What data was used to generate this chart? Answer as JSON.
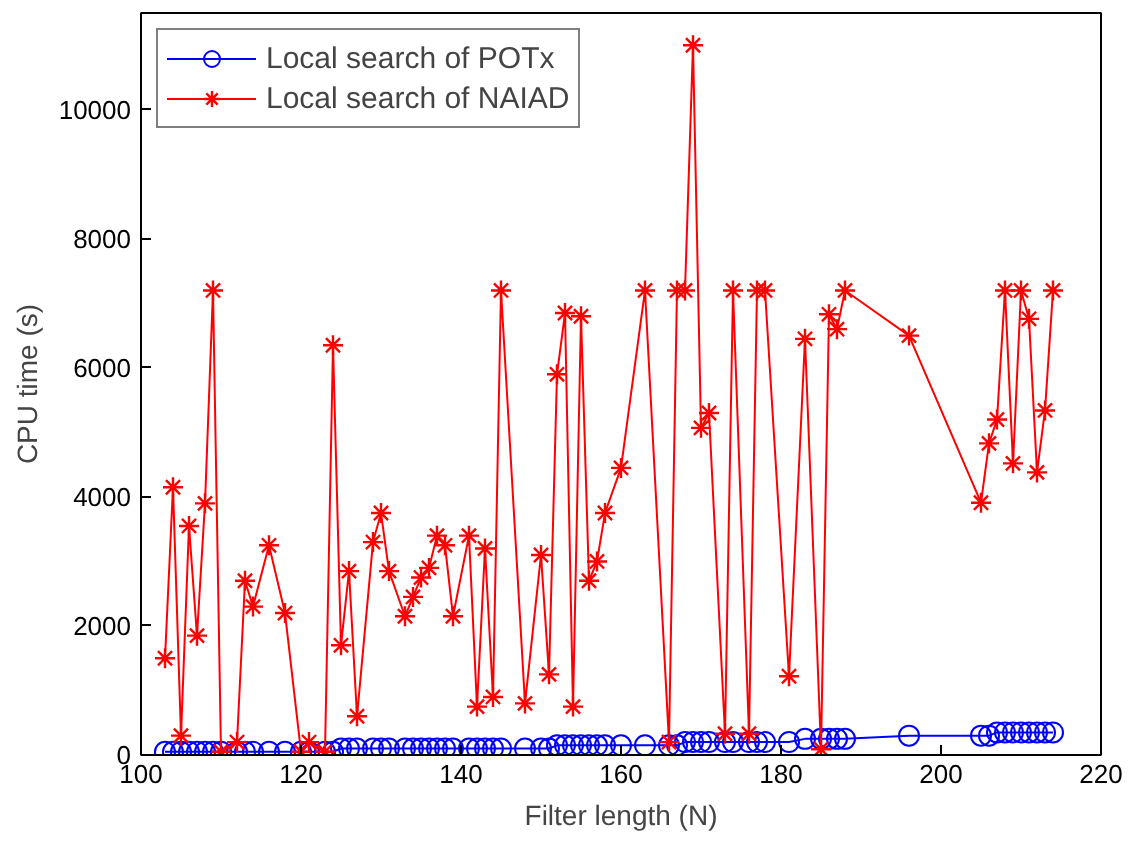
{
  "chart_data": {
    "type": "line",
    "xlabel": "Filter length (N)",
    "ylabel": "CPU time (s)",
    "x": [
      103,
      104,
      105,
      106,
      107,
      108,
      109,
      110,
      112,
      113,
      114,
      116,
      118,
      120,
      121,
      123,
      124,
      125,
      126,
      127,
      129,
      130,
      131,
      133,
      134,
      135,
      136,
      137,
      138,
      139,
      141,
      142,
      143,
      144,
      145,
      148,
      150,
      151,
      152,
      153,
      154,
      155,
      156,
      157,
      158,
      160,
      163,
      166,
      167,
      168,
      169,
      170,
      171,
      173,
      174,
      176,
      177,
      178,
      181,
      183,
      185,
      186,
      187,
      188,
      196,
      205,
      206,
      207,
      208,
      209,
      210,
      211,
      212,
      213,
      214
    ],
    "series": [
      {
        "name": "Local search of POTx",
        "color": "#0000ff",
        "marker": "circle",
        "values": [
          50,
          50,
          50,
          50,
          50,
          50,
          50,
          50,
          50,
          50,
          50,
          50,
          50,
          50,
          50,
          50,
          50,
          100,
          100,
          100,
          100,
          100,
          100,
          100,
          100,
          100,
          100,
          100,
          100,
          100,
          100,
          100,
          100,
          100,
          100,
          100,
          100,
          100,
          150,
          150,
          150,
          150,
          150,
          150,
          150,
          150,
          150,
          150,
          150,
          200,
          200,
          200,
          200,
          200,
          200,
          200,
          200,
          200,
          200,
          250,
          250,
          250,
          250,
          250,
          300,
          300,
          300,
          350,
          350,
          350,
          350,
          350,
          350,
          350,
          350
        ]
      },
      {
        "name": "Local search of NAIAD",
        "color": "#ff0000",
        "marker": "cross",
        "values": [
          1500,
          4150,
          300,
          3550,
          1850,
          3900,
          7200,
          50,
          200,
          2700,
          2300,
          3250,
          2200,
          50,
          200,
          50,
          6350,
          1700,
          2850,
          600,
          3300,
          3750,
          2850,
          2150,
          2450,
          2750,
          2900,
          3400,
          3250,
          2150,
          3400,
          750,
          3200,
          900,
          7200,
          800,
          3100,
          1250,
          5900,
          6850,
          750,
          6800,
          2700,
          3000,
          3750,
          4450,
          7200,
          200,
          7200,
          7200,
          11000,
          5070,
          5300,
          330,
          7200,
          330,
          7200,
          7200,
          1220,
          6450,
          90,
          6830,
          6600,
          7200,
          6500,
          3910,
          4830,
          5200,
          7200,
          4520,
          7200,
          6760,
          4380,
          5340,
          7200
        ]
      }
    ],
    "xlim": [
      100,
      220
    ],
    "xticks": [
      100,
      120,
      140,
      160,
      180,
      200,
      220
    ],
    "ylim": [
      0,
      11500
    ],
    "yticks": [
      0,
      2000,
      4000,
      6000,
      8000,
      10000
    ],
    "grid": false,
    "legend": "top left",
    "line_style": "solid"
  }
}
